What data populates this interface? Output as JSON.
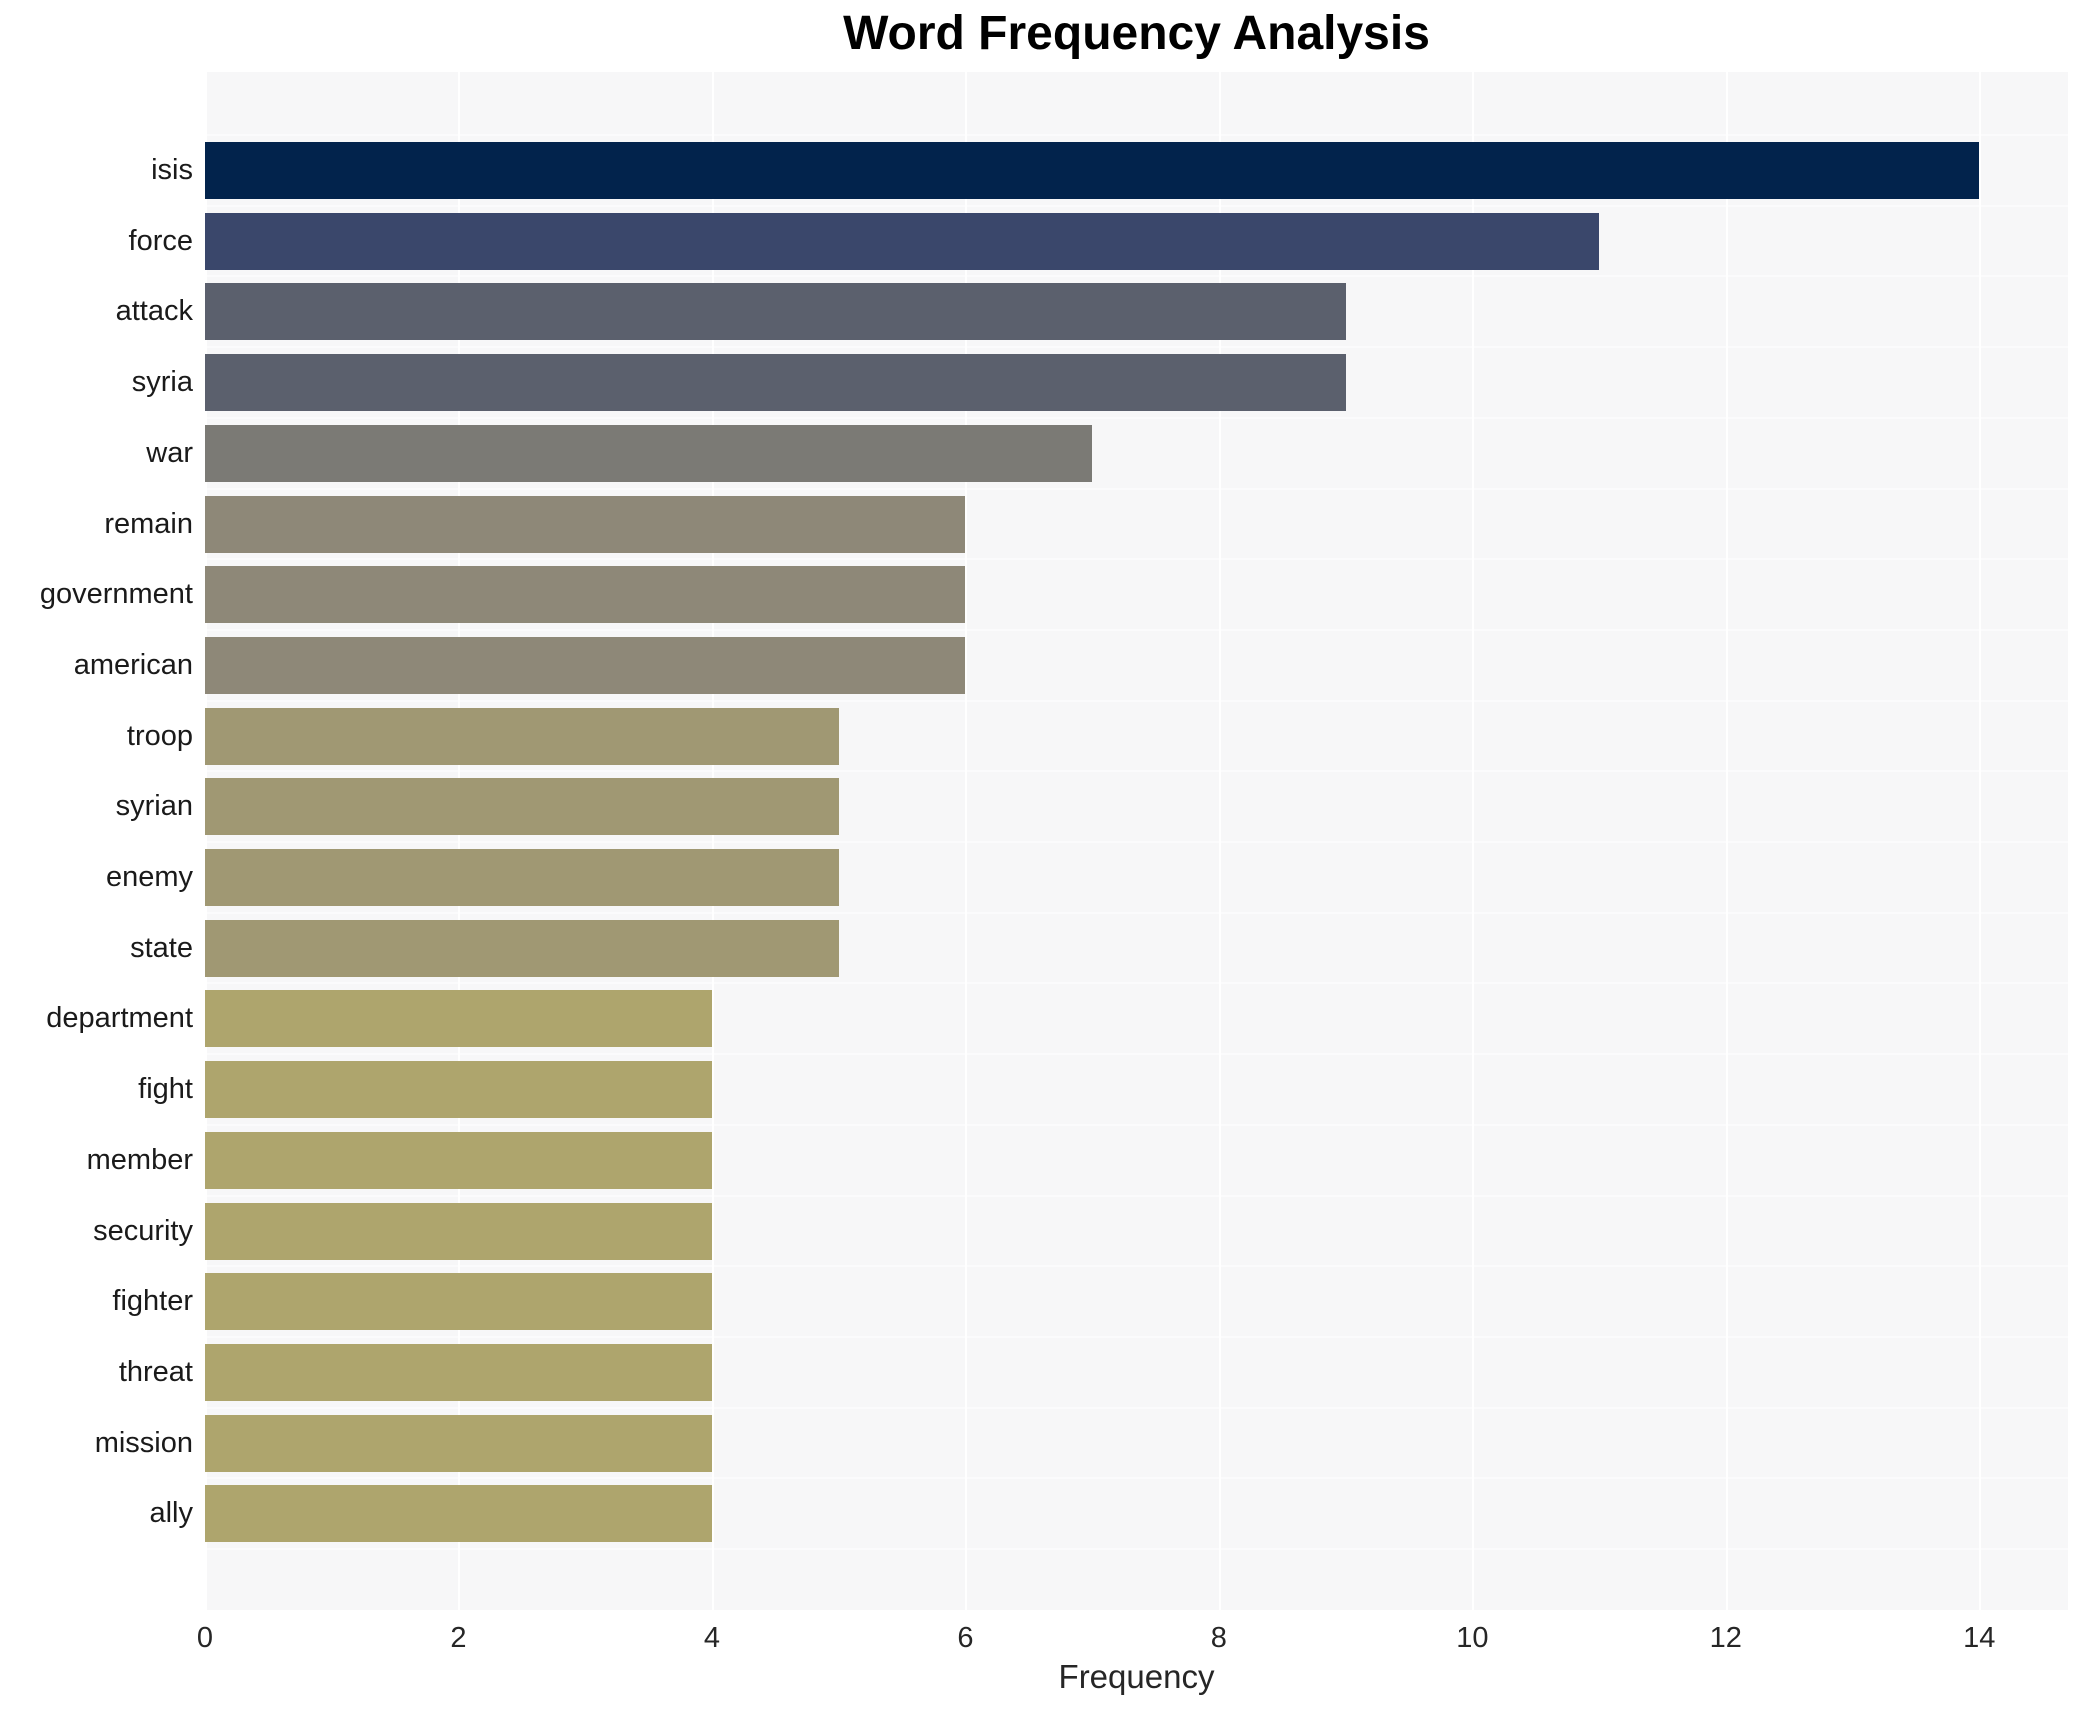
{
  "chart_data": {
    "type": "bar",
    "orientation": "horizontal",
    "title": "Word Frequency Analysis",
    "xlabel": "Frequency",
    "ylabel": "",
    "categories": [
      "isis",
      "force",
      "attack",
      "syria",
      "war",
      "remain",
      "government",
      "american",
      "troop",
      "syrian",
      "enemy",
      "state",
      "department",
      "fight",
      "member",
      "security",
      "fighter",
      "threat",
      "mission",
      "ally"
    ],
    "values": [
      14,
      11,
      9,
      9,
      7,
      6,
      6,
      6,
      5,
      5,
      5,
      5,
      4,
      4,
      4,
      4,
      4,
      4,
      4,
      4
    ],
    "bar_colors": [
      "#02234c",
      "#3a476b",
      "#5b606d",
      "#5b606d",
      "#7b7a75",
      "#8e8878",
      "#8e8878",
      "#8e8878",
      "#a09873",
      "#a09873",
      "#a09873",
      "#a09873",
      "#aea56d",
      "#aea56d",
      "#aea56d",
      "#aea56d",
      "#aea56d",
      "#aea56d",
      "#aea56d",
      "#aea56d"
    ],
    "x_ticks": [
      0,
      2,
      4,
      6,
      8,
      10,
      12,
      14
    ],
    "xlim": [
      0,
      14.7
    ],
    "grid": "vertical white gridlines at even ticks on light gray panel",
    "legend": "none",
    "colors": {
      "panel_bg": "#f7f7f8",
      "page_bg": "#ffffff",
      "gridline": "#ffffff",
      "tick_label": "#262626",
      "bar_label": "#1a1a1a",
      "title": "#000000"
    }
  }
}
